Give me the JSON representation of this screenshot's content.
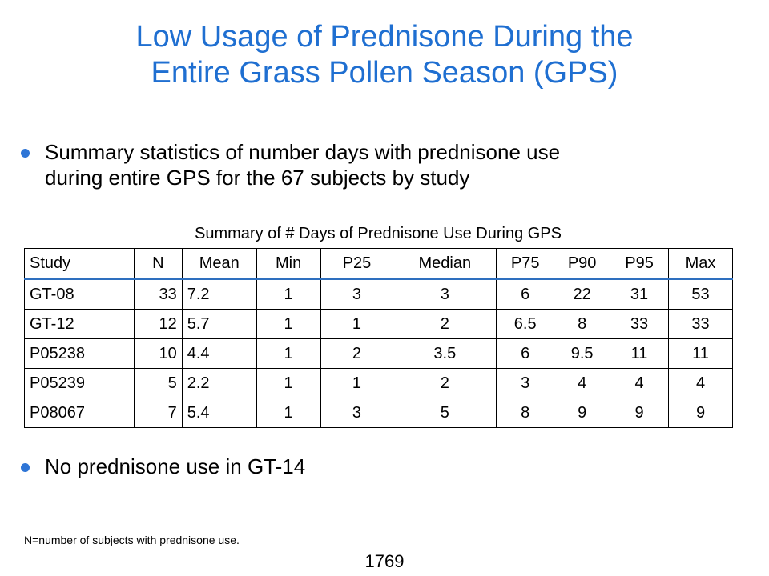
{
  "title": {
    "line1": "Low Usage of Prednisone During the",
    "line2": "Entire Grass Pollen Season (GPS)"
  },
  "bullets": [
    {
      "line1": "Summary statistics of number days with prednisone use",
      "line2": "during entire GPS for the 67 subjects by study"
    },
    {
      "line1": "No prednisone use in GT-14"
    }
  ],
  "table": {
    "caption": "Summary of # Days of Prednisone Use During GPS",
    "headers": [
      "Study",
      "N",
      "Mean",
      "Min",
      "P25",
      "Median",
      "P75",
      "P90",
      "P95",
      "Max"
    ],
    "rows": [
      [
        "GT-08",
        "33",
        "7.2",
        "1",
        "3",
        "3",
        "6",
        "22",
        "31",
        "53"
      ],
      [
        "GT-12",
        "12",
        "5.7",
        "1",
        "1",
        "2",
        "6.5",
        "8",
        "33",
        "33"
      ],
      [
        "P05238",
        "10",
        "4.4",
        "1",
        "2",
        "3.5",
        "6",
        "9.5",
        "11",
        "11"
      ],
      [
        "P05239",
        "5",
        "2.2",
        "1",
        "1",
        "2",
        "3",
        "4",
        "4",
        "4"
      ],
      [
        "P08067",
        "7",
        "5.4",
        "1",
        "3",
        "5",
        "8",
        "9",
        "9",
        "9"
      ]
    ]
  },
  "footnote": "N=number of subjects with prednisone use.",
  "page_number": "1769",
  "colors": {
    "title": "#1f6fd1",
    "bullet": "#2e75d6",
    "header_rule": "#2e6fbf"
  }
}
